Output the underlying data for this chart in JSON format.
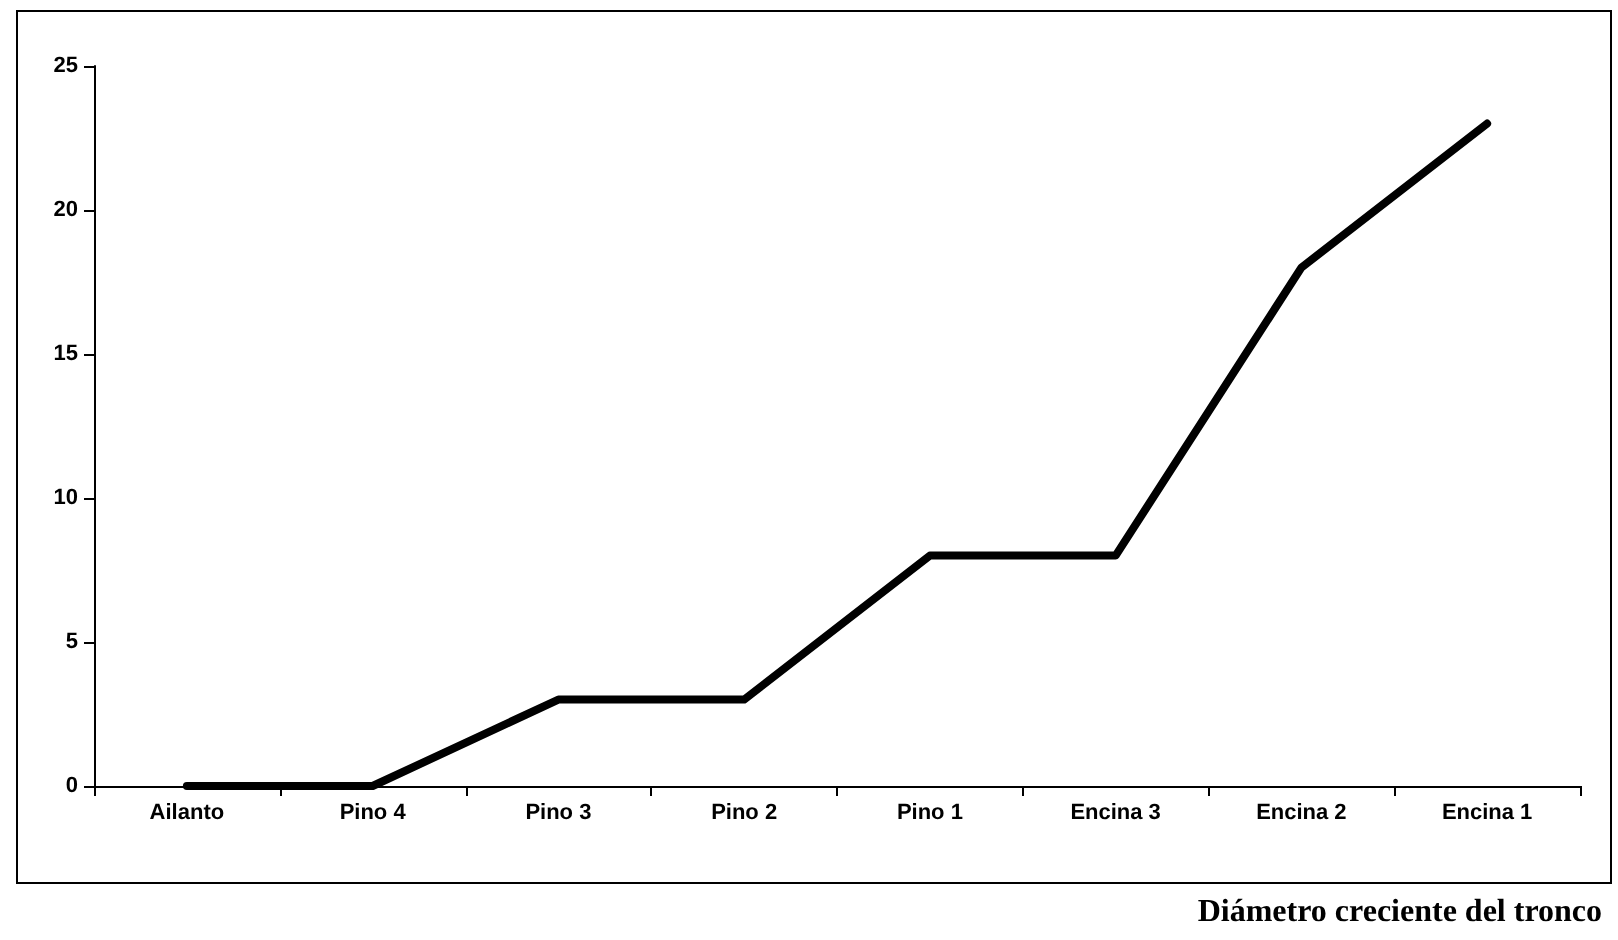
{
  "chart_data": {
    "type": "line",
    "xlabel": "Diámetro creciente del tronco",
    "categories": [
      "Ailanto",
      "Pino 4",
      "Pino 3",
      "Pino 2",
      "Pino 1",
      "Encina 3",
      "Encina 2",
      "Encina 1"
    ],
    "series": [
      {
        "color": "#000000",
        "values": [
          0,
          0,
          3,
          3,
          8,
          8,
          18,
          23
        ]
      }
    ],
    "ylim": [
      0,
      25
    ],
    "yticks": [
      0,
      5,
      10,
      15,
      20,
      25
    ],
    "grid": false,
    "marker": "none",
    "line_style": "solid"
  }
}
